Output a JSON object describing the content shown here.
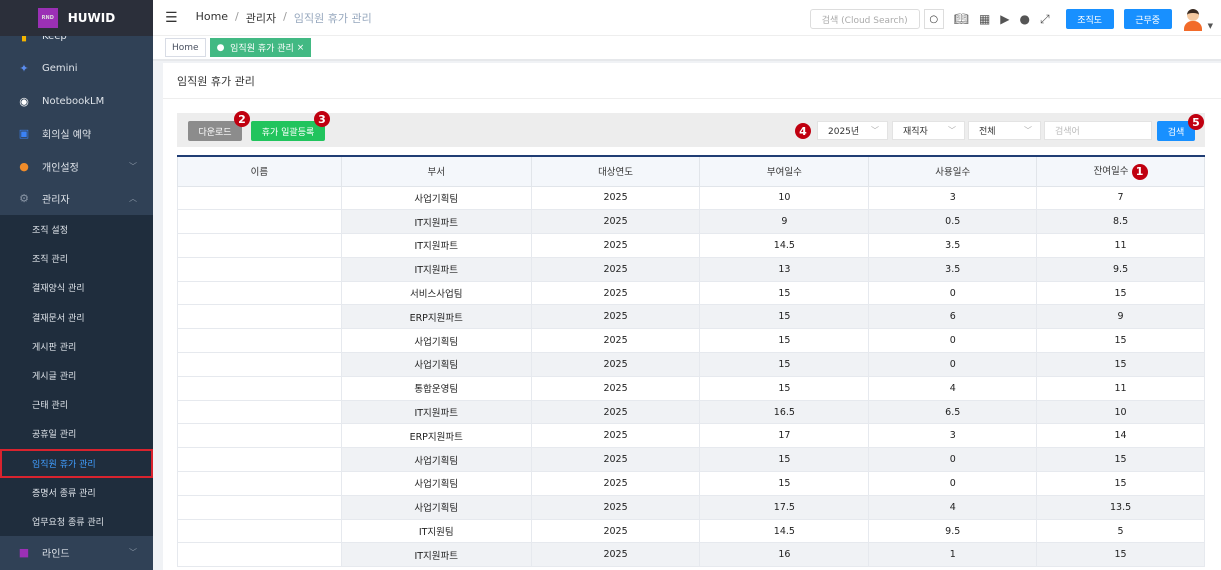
{
  "logo": {
    "text": "HUWID",
    "mark": "RND"
  },
  "sidebar": {
    "items": [
      {
        "label": "Keep",
        "icon": "keep-icon"
      },
      {
        "label": "Gemini",
        "icon": "gemini-icon"
      },
      {
        "label": "NotebookLM",
        "icon": "notebooklm-icon"
      },
      {
        "label": "회의실 예약",
        "icon": "calendar-icon"
      },
      {
        "label": "개인설정",
        "icon": "user-icon"
      },
      {
        "label": "관리자",
        "icon": "gear-icon"
      }
    ],
    "sub": [
      "조직 설정",
      "조직 관리",
      "결재양식 관리",
      "결재문서 관리",
      "게시판 관리",
      "게시글 관리",
      "근태 관리",
      "공휴일 관리",
      "임직원 휴가 관리",
      "증명서 종류 관리",
      "업무요청 종류 관리"
    ],
    "last": {
      "label": "라인드"
    }
  },
  "breadcrumb": [
    "Home",
    "관리자",
    "임직원 휴가 관리"
  ],
  "topbar": {
    "search_placeholder": "검색 (Cloud Search)",
    "org_label": "조직도",
    "status_label": "근무중"
  },
  "tabs": [
    "Home",
    "임직원 휴가 관리"
  ],
  "page": {
    "title": "임직원 휴가 관리"
  },
  "toolbar": {
    "download": "다운로드",
    "bulk": "휴가 일괄등록",
    "year": "2025년",
    "status": "재직자",
    "dept": "전체",
    "search_placeholder": "검색어",
    "search": "검색"
  },
  "badges": [
    "1",
    "2",
    "3",
    "4",
    "5"
  ],
  "table": {
    "headers": [
      "이름",
      "부서",
      "대상연도",
      "부여일수",
      "사용일수",
      "잔여일수"
    ],
    "rows": [
      [
        "",
        "사업기획팀",
        "2025",
        "10",
        "3",
        "7"
      ],
      [
        "",
        "IT지원파트",
        "2025",
        "9",
        "0.5",
        "8.5"
      ],
      [
        "",
        "IT지원파트",
        "2025",
        "14.5",
        "3.5",
        "11"
      ],
      [
        "",
        "IT지원파트",
        "2025",
        "13",
        "3.5",
        "9.5"
      ],
      [
        "",
        "서비스사업팀",
        "2025",
        "15",
        "0",
        "15"
      ],
      [
        "",
        "ERP지원파트",
        "2025",
        "15",
        "6",
        "9"
      ],
      [
        "",
        "사업기획팀",
        "2025",
        "15",
        "0",
        "15"
      ],
      [
        "",
        "사업기획팀",
        "2025",
        "15",
        "0",
        "15"
      ],
      [
        "",
        "통합운영팀",
        "2025",
        "15",
        "4",
        "11"
      ],
      [
        "",
        "IT지원파트",
        "2025",
        "16.5",
        "6.5",
        "10"
      ],
      [
        "",
        "ERP지원파트",
        "2025",
        "17",
        "3",
        "14"
      ],
      [
        "",
        "사업기획팀",
        "2025",
        "15",
        "0",
        "15"
      ],
      [
        "",
        "사업기획팀",
        "2025",
        "15",
        "0",
        "15"
      ],
      [
        "",
        "사업기획팀",
        "2025",
        "17.5",
        "4",
        "13.5"
      ],
      [
        "",
        "IT지원팀",
        "2025",
        "14.5",
        "9.5",
        "5"
      ],
      [
        "",
        "IT지원파트",
        "2025",
        "16",
        "1",
        "15"
      ]
    ]
  }
}
